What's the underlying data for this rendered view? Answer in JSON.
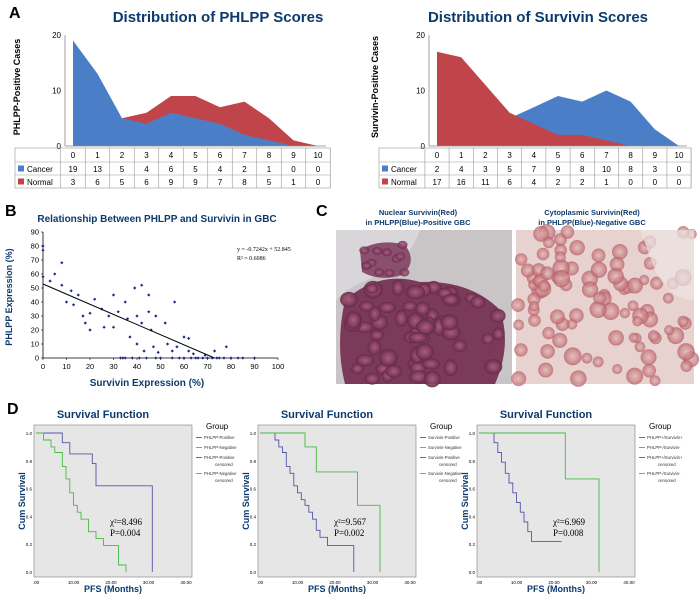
{
  "panels": {
    "A": {
      "letter": "A",
      "phlpp": {
        "title": "Distribution of PHLPP Scores",
        "ylabel": "PHLPP-Positive Cases",
        "yticks": [
          "0",
          "10",
          "20"
        ],
        "xticks": [
          "0",
          "1",
          "2",
          "3",
          "4",
          "5",
          "6",
          "7",
          "8",
          "9",
          "10"
        ],
        "rows": [
          {
            "label": "Cancer",
            "values": [
              "19",
              "13",
              "5",
              "4",
              "6",
              "5",
              "4",
              "2",
              "1",
              "0",
              "0"
            ]
          },
          {
            "label": "Normal",
            "values": [
              "3",
              "6",
              "5",
              "6",
              "9",
              "9",
              "7",
              "8",
              "5",
              "1",
              "0"
            ]
          }
        ]
      },
      "survivin": {
        "title": "Distribution of Survivin Scores",
        "ylabel": "Survivin-Positive Cases",
        "yticks": [
          "0",
          "10",
          "20"
        ],
        "xticks": [
          "0",
          "1",
          "2",
          "3",
          "4",
          "5",
          "6",
          "7",
          "8",
          "9",
          "10"
        ],
        "rows": [
          {
            "label": "Cancer",
            "values": [
              "2",
              "4",
              "3",
              "5",
              "7",
              "9",
              "8",
              "10",
              "8",
              "3",
              "0"
            ]
          },
          {
            "label": "Normal",
            "values": [
              "17",
              "16",
              "11",
              "6",
              "4",
              "2",
              "2",
              "1",
              "0",
              "0",
              "0"
            ]
          }
        ]
      }
    },
    "B": {
      "letter": "B",
      "title": "Relationship Between PHLPP and Survivin in GBC",
      "ylabel": "PHLPP Expression (%)",
      "xlabel": "Survivin Expression (%)",
      "xticks": [
        "0",
        "10",
        "20",
        "30",
        "40",
        "50",
        "60",
        "70",
        "80",
        "90",
        "100"
      ],
      "yticks": [
        "0",
        "10",
        "20",
        "30",
        "40",
        "50",
        "60",
        "70",
        "80",
        "90"
      ],
      "equation": "y = -0.7242x + 52.845",
      "r2": "R² = 0.6086"
    },
    "C": {
      "letter": "C",
      "left_caption_1": "Nuclear Survivin(Red)",
      "left_caption_2": "in PHLPP(Blue)-Positive GBC",
      "right_caption_1": "Cytoplasmic Survivin(Red)",
      "right_caption_2": "in PHLPP(Blue)-Negative GBC"
    },
    "D": {
      "letter": "D",
      "plots": [
        {
          "title": "Survival Function",
          "legend_title": "Group",
          "legend": [
            "PHLPP-Positive",
            "PHLPP-Negative",
            "PHLPP-Positive censored",
            "PHLPP-Negative censored"
          ],
          "chi": "χ²=8.496",
          "p": "P=0.004",
          "ylabel": "Cum Survival",
          "xlabel": "PFS (Months)",
          "xticks": [
            ".00",
            "10.00",
            "20.00",
            "30.00",
            "40.00"
          ],
          "yticks": [
            "0.0",
            "0.2",
            "0.4",
            "0.6",
            "0.8",
            "1.0"
          ]
        },
        {
          "title": "Survival Function",
          "legend_title": "Group",
          "legend": [
            "Survivin-Positive",
            "Survivin-Negative",
            "Survivin-Positive censored",
            "Survivin-Negative censored"
          ],
          "chi": "χ²=9.567",
          "p": "P=0.002",
          "ylabel": "Cum Survival",
          "xlabel": "PFS (Months)",
          "xticks": [
            ".00",
            "10.00",
            "20.00",
            "30.00",
            "40.00"
          ],
          "yticks": [
            "0.0",
            "0.2",
            "0.4",
            "0.6",
            "0.8",
            "1.0"
          ]
        },
        {
          "title": "Survival Function",
          "legend_title": "Group",
          "legend": [
            "PHLPP+/Survivin+",
            "PHLPP-/Survivin-",
            "PHLPP+/Survivin+ censored",
            "PHLPP-/Survivin- censored"
          ],
          "chi": "χ²=6.969",
          "p": "P=0.008",
          "ylabel": "Cum Survival",
          "xlabel": "PFS (Months)",
          "xticks": [
            ".00",
            "10.00",
            "20.00",
            "30.00",
            "40.00"
          ],
          "yticks": [
            "0.0",
            "0.2",
            "0.4",
            "0.6",
            "0.8",
            "1.0"
          ]
        }
      ]
    }
  },
  "colors": {
    "cancer": "#4a7fc8",
    "normal": "#c0454a",
    "trend": "#000000",
    "scatter": "#1f2a8a",
    "km_blue": "#5555aa",
    "km_green": "#44bb44",
    "panel_bg": "#e6e6e6"
  },
  "chart_data": [
    {
      "type": "area",
      "title": "Distribution of PHLPP Scores",
      "ylabel": "PHLPP-Positive Cases",
      "x": [
        0,
        1,
        2,
        3,
        4,
        5,
        6,
        7,
        8,
        9,
        10
      ],
      "ylim": [
        0,
        20
      ],
      "series": [
        {
          "name": "Cancer",
          "values": [
            19,
            13,
            5,
            4,
            6,
            5,
            4,
            2,
            1,
            0,
            0
          ]
        },
        {
          "name": "Normal",
          "values": [
            3,
            6,
            5,
            6,
            9,
            9,
            7,
            8,
            5,
            1,
            0
          ]
        }
      ]
    },
    {
      "type": "area",
      "title": "Distribution of Survivin Scores",
      "ylabel": "Survivin-Positive Cases",
      "x": [
        0,
        1,
        2,
        3,
        4,
        5,
        6,
        7,
        8,
        9,
        10
      ],
      "ylim": [
        0,
        20
      ],
      "series": [
        {
          "name": "Cancer",
          "values": [
            2,
            4,
            3,
            5,
            7,
            9,
            8,
            10,
            8,
            3,
            0
          ]
        },
        {
          "name": "Normal",
          "values": [
            17,
            16,
            11,
            6,
            4,
            2,
            2,
            1,
            0,
            0,
            0
          ]
        }
      ]
    },
    {
      "type": "scatter",
      "title": "Relationship Between PHLPP and Survivin in GBC",
      "xlabel": "Survivin Expression (%)",
      "ylabel": "PHLPP Expression (%)",
      "xlim": [
        0,
        100
      ],
      "ylim": [
        0,
        90
      ],
      "trend": {
        "slope": -0.7242,
        "intercept": 52.845
      },
      "points": [
        [
          0,
          80
        ],
        [
          0,
          77
        ],
        [
          0,
          58
        ],
        [
          3,
          55
        ],
        [
          5,
          60
        ],
        [
          8,
          68
        ],
        [
          8,
          52
        ],
        [
          10,
          40
        ],
        [
          12,
          48
        ],
        [
          13,
          38
        ],
        [
          15,
          45
        ],
        [
          17,
          30
        ],
        [
          18,
          25
        ],
        [
          20,
          32
        ],
        [
          20,
          20
        ],
        [
          22,
          42
        ],
        [
          25,
          35
        ],
        [
          26,
          22
        ],
        [
          28,
          30
        ],
        [
          30,
          45
        ],
        [
          30,
          22
        ],
        [
          32,
          33
        ],
        [
          33,
          0
        ],
        [
          34,
          0
        ],
        [
          35,
          40
        ],
        [
          35,
          0
        ],
        [
          36,
          28
        ],
        [
          37,
          15
        ],
        [
          38,
          0
        ],
        [
          39,
          50
        ],
        [
          40,
          30
        ],
        [
          40,
          10
        ],
        [
          41,
          0
        ],
        [
          42,
          52
        ],
        [
          42,
          25
        ],
        [
          43,
          5
        ],
        [
          44,
          0
        ],
        [
          45,
          45
        ],
        [
          45,
          33
        ],
        [
          46,
          20
        ],
        [
          47,
          8
        ],
        [
          48,
          30
        ],
        [
          48,
          0
        ],
        [
          49,
          4
        ],
        [
          50,
          0
        ],
        [
          52,
          25
        ],
        [
          53,
          10
        ],
        [
          55,
          5
        ],
        [
          55,
          0
        ],
        [
          56,
          40
        ],
        [
          57,
          8
        ],
        [
          58,
          0
        ],
        [
          60,
          15
        ],
        [
          60,
          0
        ],
        [
          62,
          14
        ],
        [
          62,
          5
        ],
        [
          63,
          0
        ],
        [
          64,
          3
        ],
        [
          65,
          0
        ],
        [
          66,
          0
        ],
        [
          68,
          0
        ],
        [
          69,
          2
        ],
        [
          70,
          0
        ],
        [
          72,
          0
        ],
        [
          73,
          5
        ],
        [
          74,
          0
        ],
        [
          75,
          0
        ],
        [
          77,
          0
        ],
        [
          78,
          8
        ],
        [
          80,
          0
        ],
        [
          83,
          0
        ],
        [
          85,
          0
        ],
        [
          90,
          0
        ]
      ]
    },
    {
      "type": "line",
      "title": "Survival Function",
      "xlabel": "PFS (Months)",
      "ylabel": "Cum Survival",
      "xlim": [
        0,
        40
      ],
      "ylim": [
        0,
        1
      ],
      "series": [
        {
          "name": "PHLPP-Positive",
          "x": [
            0,
            5,
            7,
            8,
            9,
            10,
            12,
            15,
            16,
            18,
            20,
            28,
            31
          ],
          "y": [
            1,
            1,
            0.93,
            0.93,
            0.85,
            0.85,
            0.85,
            0.78,
            0.62,
            0.62,
            0.62,
            0.62,
            0
          ]
        },
        {
          "name": "PHLPP-Negative",
          "x": [
            0,
            2,
            4,
            5,
            7,
            8,
            9,
            10,
            11,
            12,
            14,
            16,
            18,
            20,
            22,
            24
          ],
          "y": [
            1,
            0.95,
            0.9,
            0.86,
            0.76,
            0.67,
            0.57,
            0.48,
            0.43,
            0.38,
            0.29,
            0.24,
            0.19,
            0.19,
            0.05,
            0
          ]
        }
      ]
    },
    {
      "type": "line",
      "title": "Survival Function",
      "xlabel": "PFS (Months)",
      "ylabel": "Cum Survival",
      "xlim": [
        0,
        40
      ],
      "ylim": [
        0,
        1
      ],
      "series": [
        {
          "name": "Survivin-Positive",
          "x": [
            0,
            4,
            5,
            6,
            7,
            8,
            9,
            10,
            11,
            12,
            13,
            14,
            15,
            16,
            18,
            20,
            23,
            25
          ],
          "y": [
            1,
            0.95,
            0.9,
            0.86,
            0.76,
            0.71,
            0.62,
            0.57,
            0.52,
            0.48,
            0.43,
            0.38,
            0.3,
            0.25,
            0.19,
            0.19,
            0.19,
            0
          ]
        },
        {
          "name": "Survivin-Negative",
          "x": [
            0,
            8,
            12,
            15,
            18,
            22,
            26,
            32
          ],
          "y": [
            1,
            1,
            0.9,
            0.72,
            0.72,
            0.72,
            0.48,
            0
          ]
        }
      ]
    },
    {
      "type": "line",
      "title": "Survival Function",
      "xlabel": "PFS (Months)",
      "ylabel": "Cum Survival",
      "xlim": [
        0,
        40
      ],
      "ylim": [
        0,
        1
      ],
      "series": [
        {
          "name": "PHLPP+/Survivin+",
          "x": [
            0,
            4,
            5,
            6,
            7,
            8,
            9,
            10,
            11,
            12,
            13,
            14,
            15,
            16,
            20,
            22
          ],
          "y": [
            1,
            0.93,
            0.86,
            0.79,
            0.71,
            0.64,
            0.57,
            0.5,
            0.43,
            0.36,
            0.29,
            0.22,
            0.22,
            0.22,
            0.22,
            0.22
          ]
        },
        {
          "name": "PHLPP-/Survivin-",
          "x": [
            0,
            8,
            12,
            20,
            23,
            28,
            32
          ],
          "y": [
            1,
            1,
            1,
            1,
            0.67,
            0.67,
            0
          ]
        }
      ]
    }
  ]
}
